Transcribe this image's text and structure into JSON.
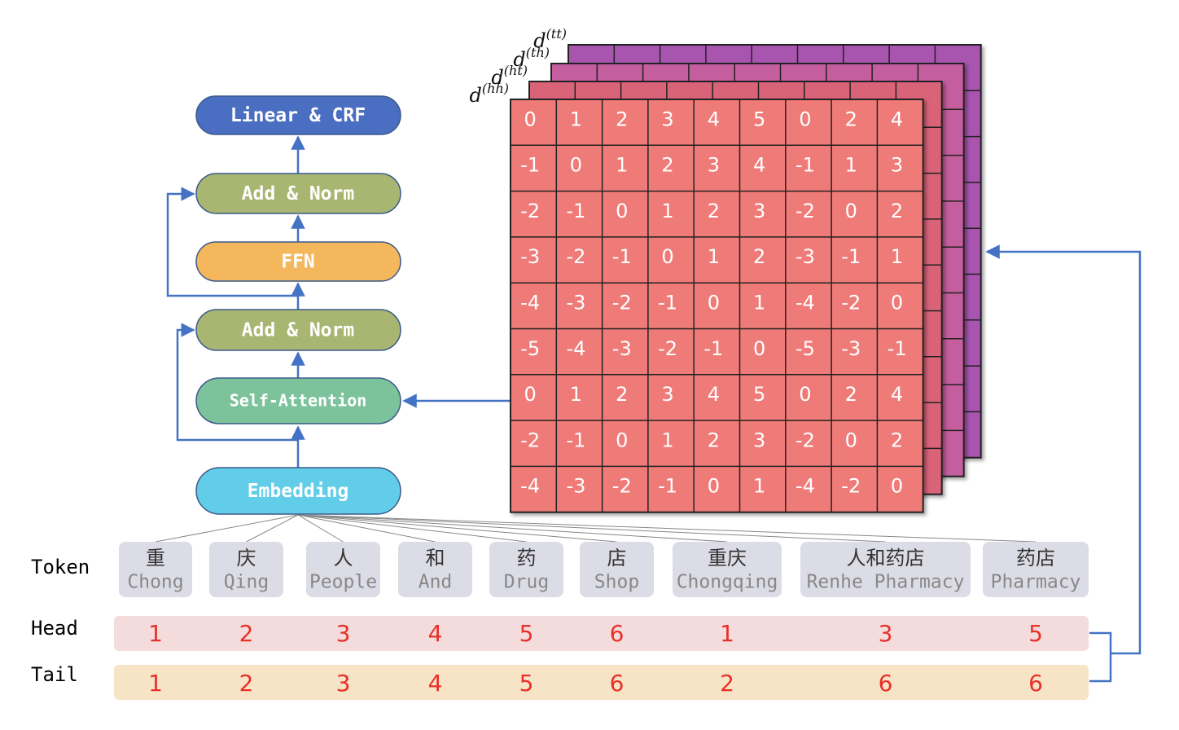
{
  "blocks": [
    {
      "label": "Linear & CRF"
    },
    {
      "label": "Add & Norm"
    },
    {
      "label": "FFN"
    },
    {
      "label": "Add & Norm"
    },
    {
      "label": "Self-Attention"
    },
    {
      "label": "Embedding"
    }
  ],
  "layers": [
    {
      "base": "d",
      "sup": "(tt)"
    },
    {
      "base": "d",
      "sup": "(th)"
    },
    {
      "base": "d",
      "sup": "(ht)"
    },
    {
      "base": "d",
      "sup": "(hh)"
    }
  ],
  "matrix": [
    [
      0,
      1,
      2,
      3,
      4,
      5,
      0,
      2,
      4
    ],
    [
      -1,
      0,
      1,
      2,
      3,
      4,
      -1,
      1,
      3
    ],
    [
      -2,
      -1,
      0,
      1,
      2,
      3,
      -2,
      0,
      2
    ],
    [
      -3,
      -2,
      -1,
      0,
      1,
      2,
      -3,
      -1,
      1
    ],
    [
      -4,
      -3,
      -2,
      -1,
      0,
      1,
      -4,
      -2,
      0
    ],
    [
      -5,
      -4,
      -3,
      -2,
      -1,
      0,
      -5,
      -3,
      -1
    ],
    [
      0,
      1,
      2,
      3,
      4,
      5,
      0,
      2,
      4
    ],
    [
      -2,
      -1,
      0,
      1,
      2,
      3,
      -2,
      0,
      2
    ],
    [
      -4,
      -3,
      -2,
      -1,
      0,
      1,
      -4,
      -2,
      0
    ]
  ],
  "row_labels": {
    "token": "Token",
    "head": "Head",
    "tail": "Tail"
  },
  "tokens": [
    {
      "chinese": "重",
      "latin": "Chong"
    },
    {
      "chinese": "庆",
      "latin": "Qing"
    },
    {
      "chinese": "人",
      "latin": "People"
    },
    {
      "chinese": "和",
      "latin": "And"
    },
    {
      "chinese": "药",
      "latin": "Drug"
    },
    {
      "chinese": "店",
      "latin": "Shop"
    },
    {
      "chinese": "重庆",
      "latin": "Chongqing"
    },
    {
      "chinese": "人和药店",
      "latin": "Renhe Pharmacy"
    },
    {
      "chinese": "药店",
      "latin": "Pharmacy"
    }
  ],
  "head": [
    1,
    2,
    3,
    4,
    5,
    6,
    1,
    3,
    5
  ],
  "tail": [
    1,
    2,
    3,
    4,
    5,
    6,
    2,
    6,
    6
  ]
}
